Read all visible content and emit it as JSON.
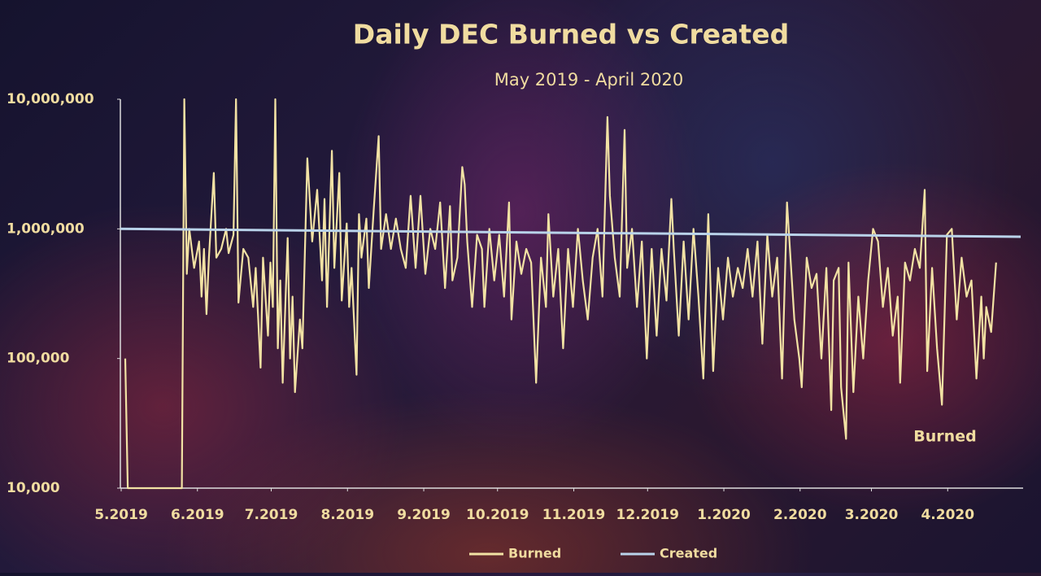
{
  "chart_data": {
    "type": "line",
    "title": "Daily DEC Burned vs Created",
    "subtitle": "May 2019 - April 2020",
    "annotation": "Burned",
    "log_y": true,
    "grid": false,
    "legend": "bottom",
    "xlim": [
      0,
      366
    ],
    "xticks": [
      {
        "value": 0,
        "label": "5.2019"
      },
      {
        "value": 31,
        "label": "6.2019"
      },
      {
        "value": 61,
        "label": "7.2019"
      },
      {
        "value": 92,
        "label": "8.2019"
      },
      {
        "value": 123,
        "label": "9.2019"
      },
      {
        "value": 153,
        "label": "10.2019"
      },
      {
        "value": 184,
        "label": "11.2019"
      },
      {
        "value": 214,
        "label": "12.2019"
      },
      {
        "value": 245,
        "label": "1.2020"
      },
      {
        "value": 276,
        "label": "2.2020"
      },
      {
        "value": 305,
        "label": "3.2020"
      },
      {
        "value": 336,
        "label": "4.2020"
      }
    ],
    "ylim": [
      10000,
      10000000
    ],
    "yticks": [
      {
        "value": 10000,
        "label": "10,000"
      },
      {
        "value": 100000,
        "label": "100,000"
      },
      {
        "value": 1000000,
        "label": "1,000,000"
      },
      {
        "value": 10000000,
        "label": "10,000,000"
      }
    ],
    "series": [
      {
        "name": "Burned",
        "color": "#f2e2a4",
        "x": [
          2,
          3,
          25,
          26,
          27,
          28,
          30,
          32,
          33,
          34,
          35,
          36,
          38,
          39,
          41,
          43,
          44,
          46,
          47,
          48,
          50,
          52,
          54,
          55,
          57,
          58,
          60,
          61,
          62,
          63,
          64,
          65,
          66,
          68,
          69,
          70,
          71,
          73,
          74,
          76,
          78,
          80,
          82,
          83,
          84,
          86,
          87,
          89,
          90,
          92,
          93,
          94,
          96,
          97,
          98,
          100,
          101,
          103,
          105,
          106,
          108,
          110,
          112,
          114,
          116,
          118,
          120,
          122,
          124,
          126,
          128,
          130,
          132,
          134,
          135,
          137,
          139,
          140,
          141,
          143,
          145,
          147,
          148,
          150,
          152,
          154,
          156,
          158,
          159,
          161,
          163,
          165,
          167,
          169,
          171,
          173,
          174,
          176,
          178,
          180,
          182,
          184,
          186,
          188,
          190,
          192,
          194,
          196,
          198,
          199,
          201,
          203,
          205,
          206,
          208,
          210,
          212,
          214,
          216,
          218,
          220,
          222,
          224,
          225,
          227,
          229,
          231,
          233,
          235,
          237,
          239,
          241,
          243,
          245,
          247,
          249,
          251,
          253,
          255,
          257,
          259,
          261,
          263,
          265,
          267,
          269,
          271,
          272,
          274,
          276,
          277,
          279,
          281,
          283,
          285,
          287,
          289,
          290,
          292,
          293,
          295,
          296,
          298,
          300,
          302,
          304,
          306,
          308,
          310,
          312,
          314,
          316,
          317,
          319,
          321,
          323,
          325,
          327,
          328,
          330,
          332,
          334,
          336,
          338,
          340,
          342,
          344,
          346,
          348,
          350,
          351,
          352,
          354,
          356
        ],
        "values": [
          100000,
          10000,
          10000,
          10000000,
          450000,
          1000000,
          500000,
          800000,
          300000,
          700000,
          220000,
          600000,
          2700000,
          600000,
          700000,
          1000000,
          650000,
          900000,
          10000000,
          270000,
          700000,
          600000,
          250000,
          500000,
          85000,
          600000,
          150000,
          550000,
          250000,
          10000000,
          120000,
          400000,
          65000,
          850000,
          100000,
          300000,
          55000,
          200000,
          120000,
          3500000,
          800000,
          2000000,
          400000,
          1700000,
          250000,
          4000000,
          500000,
          2700000,
          280000,
          1100000,
          250000,
          500000,
          75000,
          1300000,
          600000,
          1200000,
          350000,
          1400000,
          5200000,
          700000,
          1300000,
          700000,
          1200000,
          700000,
          500000,
          1800000,
          500000,
          1800000,
          450000,
          1000000,
          700000,
          1600000,
          350000,
          1500000,
          400000,
          600000,
          3000000,
          2200000,
          800000,
          250000,
          900000,
          700000,
          250000,
          1000000,
          400000,
          900000,
          300000,
          1600000,
          200000,
          800000,
          450000,
          700000,
          550000,
          65000,
          600000,
          250000,
          1300000,
          300000,
          700000,
          120000,
          700000,
          250000,
          1000000,
          400000,
          200000,
          600000,
          1000000,
          300000,
          7300000,
          1800000,
          600000,
          300000,
          5800000,
          500000,
          1000000,
          250000,
          800000,
          100000,
          700000,
          150000,
          700000,
          280000,
          1700000,
          700000,
          150000,
          800000,
          200000,
          1000000,
          300000,
          70000,
          1300000,
          80000,
          500000,
          200000,
          600000,
          300000,
          500000,
          350000,
          700000,
          300000,
          800000,
          130000,
          900000,
          300000,
          600000,
          70000,
          1600000,
          800000,
          200000,
          100000,
          60000,
          600000,
          350000,
          450000,
          100000,
          500000,
          40000,
          400000,
          500000,
          60000,
          24000,
          550000,
          55000,
          300000,
          100000,
          400000,
          1000000,
          800000,
          250000,
          500000,
          150000,
          300000,
          65000,
          550000,
          400000,
          700000,
          500000,
          2000000,
          80000,
          500000,
          120000,
          44000,
          900000,
          1000000,
          200000,
          600000,
          300000,
          400000,
          70000,
          300000,
          100000,
          250000,
          160000,
          550000
        ]
      },
      {
        "name": "Created",
        "color": "#b9d3ea",
        "x": [
          0,
          366
        ],
        "values": [
          1000000,
          870000
        ]
      }
    ]
  }
}
